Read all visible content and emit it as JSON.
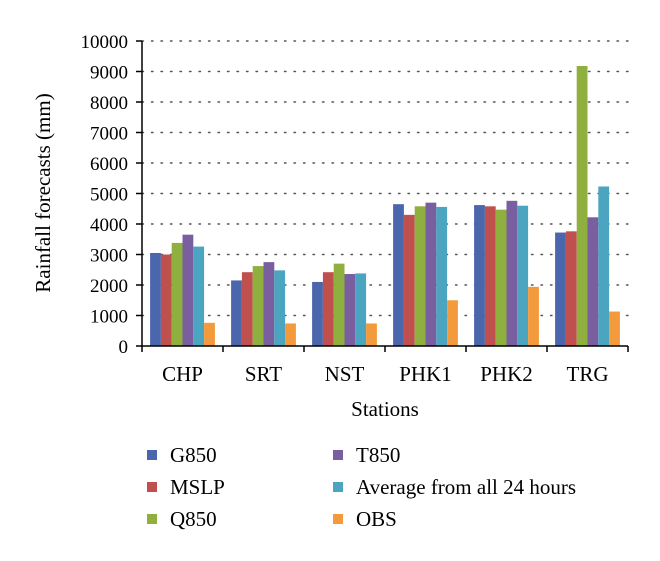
{
  "chart_data": {
    "type": "bar",
    "xlabel": "Stations",
    "ylabel": "Rainfall forecasts (mm)",
    "ylim": [
      0,
      10000
    ],
    "yticks": [
      0,
      1000,
      2000,
      3000,
      4000,
      5000,
      6000,
      7000,
      8000,
      9000,
      10000
    ],
    "grid": "horizontal-dotted",
    "legend_position": "bottom",
    "categories": [
      "CHP",
      "SRT",
      "NST",
      "PHK1",
      "PHK2",
      "TRG"
    ],
    "series": [
      {
        "name": "G850",
        "color": "#4a66ac",
        "values": [
          3050,
          2150,
          2100,
          4650,
          4620,
          3720
        ]
      },
      {
        "name": "MSLP",
        "color": "#c0504d",
        "values": [
          3000,
          2420,
          2420,
          4300,
          4580,
          3760
        ]
      },
      {
        "name": "Q850",
        "color": "#8faf3f",
        "values": [
          3380,
          2620,
          2700,
          4580,
          4470,
          9180
        ]
      },
      {
        "name": "T850",
        "color": "#7a5fa0",
        "values": [
          3650,
          2750,
          2360,
          4700,
          4760,
          4220
        ]
      },
      {
        "name": "Average from all 24 hours",
        "color": "#4ba5c0",
        "values": [
          3260,
          2480,
          2380,
          4560,
          4600,
          5230
        ]
      },
      {
        "name": "OBS",
        "color": "#f29a3c",
        "values": [
          760,
          740,
          740,
          1500,
          1940,
          1130
        ]
      }
    ],
    "legend_order": [
      0,
      3,
      1,
      4,
      2,
      5
    ]
  }
}
